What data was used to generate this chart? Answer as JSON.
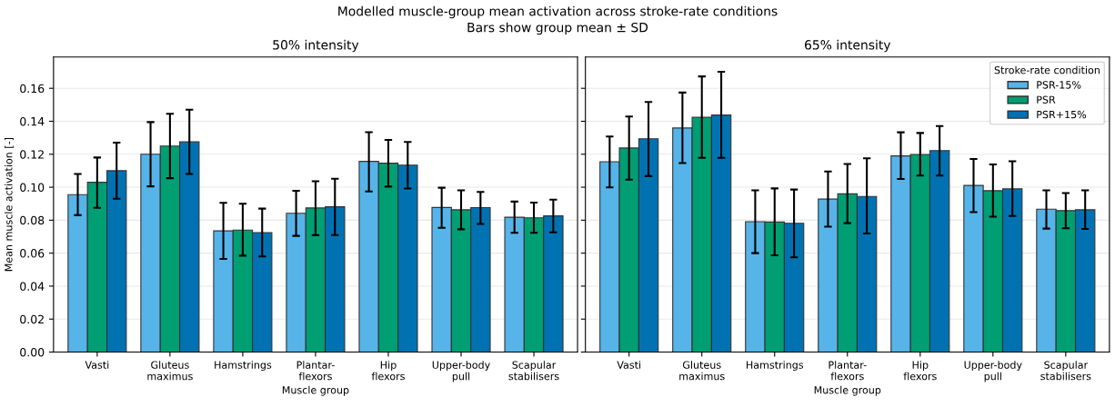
{
  "chart_data": [
    {
      "type": "bar",
      "title": "50% intensity",
      "annotations": [
        "Modelled muscle-group mean activation across stroke-rate conditions",
        "Bars show group mean ± SD"
      ],
      "xlabel": "Muscle group",
      "ylabel": "Mean muscle activation [-]",
      "categories": [
        "Vasti",
        "Gluteus\nmaximus",
        "Hamstrings",
        "Plantar-\nflexors",
        "Hip\nflexors",
        "Upper-body\npull",
        "Scapular\nstabilisers"
      ],
      "ylim": [
        0,
        0.179
      ],
      "yticks": [
        {
          "value": 0,
          "label": "0.00"
        },
        {
          "value": 0.02,
          "label": "0.02"
        },
        {
          "value": 0.04,
          "label": "0.04"
        },
        {
          "value": 0.06,
          "label": "0.06"
        },
        {
          "value": 0.08,
          "label": "0.08"
        },
        {
          "value": 0.1,
          "label": "0.10"
        },
        {
          "value": 0.12,
          "label": "0.12"
        },
        {
          "value": 0.14,
          "label": "0.14"
        },
        {
          "value": 0.16,
          "label": "0.16"
        }
      ],
      "grid": "y",
      "series": [
        {
          "color": "#56b4e9",
          "values": [
            0.0955,
            0.12,
            0.0735,
            0.0842,
            0.1157,
            0.0877,
            0.0818
          ],
          "errors": [
            [
              0.083,
              0.108
            ],
            [
              0.1005,
              0.1395
            ],
            [
              0.0565,
              0.0905
            ],
            [
              0.0705,
              0.0978
            ],
            [
              0.0974,
              0.1334
            ],
            [
              0.0754,
              0.0997
            ],
            [
              0.0723,
              0.0913
            ]
          ]
        },
        {
          "color": "#009e73",
          "values": [
            0.103,
            0.125,
            0.074,
            0.0874,
            0.1146,
            0.0863,
            0.0814
          ],
          "errors": [
            [
              0.0875,
              0.118
            ],
            [
              0.1055,
              0.1445
            ],
            [
              0.0585,
              0.09
            ],
            [
              0.0709,
              0.1036
            ],
            [
              0.1004,
              0.1287
            ],
            [
              0.0745,
              0.0981
            ],
            [
              0.0723,
              0.0907
            ]
          ]
        },
        {
          "color": "#0072b2",
          "values": [
            0.11,
            0.1275,
            0.0725,
            0.0881,
            0.1134,
            0.0876,
            0.0826
          ],
          "errors": [
            [
              0.093,
              0.127
            ],
            [
              0.108,
              0.147
            ],
            [
              0.058,
              0.087
            ],
            [
              0.071,
              0.1051
            ],
            [
              0.0992,
              0.1275
            ],
            [
              0.0777,
              0.0971
            ],
            [
              0.0726,
              0.0925
            ]
          ]
        }
      ]
    },
    {
      "type": "bar",
      "title": "65% intensity",
      "xlabel": "Muscle group",
      "legend_title": "Stroke-rate condition",
      "categories": [
        "Vasti",
        "Gluteus\nmaximus",
        "Hamstrings",
        "Plantar-\nflexors",
        "Hip\nflexors",
        "Upper-body\npull",
        "Scapular\nstabilisers"
      ],
      "ylim": [
        0,
        0.179
      ],
      "yticks": [
        {
          "value": 0,
          "label": null
        },
        {
          "value": 0.02,
          "label": null
        },
        {
          "value": 0.04,
          "label": null
        },
        {
          "value": 0.06,
          "label": null
        },
        {
          "value": 0.08,
          "label": null
        },
        {
          "value": 0.1,
          "label": null
        },
        {
          "value": 0.12,
          "label": null
        },
        {
          "value": 0.14,
          "label": null
        },
        {
          "value": 0.16,
          "label": null
        }
      ],
      "tick_labels": "x",
      "grid": "y",
      "legend": "top right",
      "series": [
        {
          "name": "PSR-15%",
          "color": "#56b4e9",
          "values": [
            0.1155,
            0.1359,
            0.0791,
            0.0928,
            0.119,
            0.1011,
            0.0867
          ],
          "errors": [
            [
              0.0999,
              0.1308
            ],
            [
              0.1146,
              0.1574
            ],
            [
              0.06,
              0.0981
            ],
            [
              0.0761,
              0.1095
            ],
            [
              0.105,
              0.1333
            ],
            [
              0.0849,
              0.1171
            ],
            [
              0.0749,
              0.0981
            ]
          ]
        },
        {
          "name": "PSR",
          "color": "#009e73",
          "values": [
            0.1238,
            0.1424,
            0.0789,
            0.096,
            0.1199,
            0.0979,
            0.0858
          ],
          "errors": [
            [
              0.1046,
              0.1429
            ],
            [
              0.1178,
              0.1672
            ],
            [
              0.0587,
              0.0993
            ],
            [
              0.0782,
              0.1141
            ],
            [
              0.1071,
              0.1329
            ],
            [
              0.0821,
              0.1138
            ],
            [
              0.0751,
              0.0965
            ]
          ]
        },
        {
          "name": "PSR+15%",
          "color": "#0072b2",
          "values": [
            0.1294,
            0.1438,
            0.0781,
            0.0944,
            0.1222,
            0.099,
            0.0863
          ],
          "errors": [
            [
              0.1067,
              0.1517
            ],
            [
              0.1178,
              0.17
            ],
            [
              0.0575,
              0.0986
            ],
            [
              0.0719,
              0.1175
            ],
            [
              0.1071,
              0.1371
            ],
            [
              0.0825,
              0.1157
            ],
            [
              0.0747,
              0.0981
            ]
          ]
        }
      ]
    }
  ]
}
